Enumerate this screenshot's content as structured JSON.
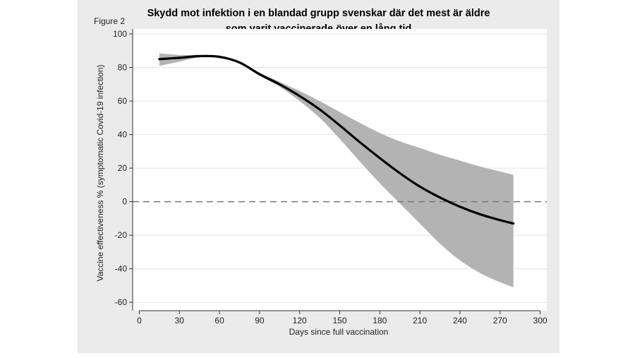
{
  "chart_data": {
    "type": "line",
    "title": "Skydd mot infektion i en blandad grupp svenskar där det mest är äldre som varit vaccinerade över en lång tid",
    "title_lines": [
      "Skydd mot infektion i en blandad grupp svenskar där det mest är äldre",
      "som varit vaccinerade över en lång tid"
    ],
    "figure_label": "Figure 2",
    "xlabel": "Days since full vaccination",
    "ylabel": "Vaccine effectiveness % (symptomatic Covid-19 infection)",
    "xlim": [
      -5,
      305
    ],
    "ylim": [
      -65,
      103
    ],
    "x_ticks": [
      0,
      30,
      60,
      90,
      120,
      150,
      180,
      210,
      240,
      270,
      300
    ],
    "y_ticks": [
      100,
      80,
      60,
      40,
      20,
      0,
      -20,
      -40,
      -60
    ],
    "reference_line": 0,
    "series": [
      {
        "name": "estimate",
        "x": [
          15,
          30,
          45,
          60,
          75,
          90,
          105,
          120,
          135,
          150,
          165,
          180,
          195,
          210,
          225,
          240,
          255,
          270,
          280
        ],
        "y": [
          85,
          85.8,
          86.8,
          86.4,
          83,
          76,
          70,
          63,
          55,
          45.5,
          35.5,
          26,
          17,
          9,
          2.5,
          -3,
          -7.5,
          -11,
          -13
        ]
      },
      {
        "name": "confidence_band",
        "x": [
          15,
          30,
          45,
          60,
          75,
          90,
          105,
          120,
          135,
          150,
          165,
          180,
          195,
          210,
          225,
          240,
          255,
          270,
          280
        ],
        "upper": [
          88.5,
          87.5,
          87.5,
          87,
          83.5,
          77,
          71.5,
          66,
          60,
          53.5,
          47,
          41,
          36,
          32,
          28,
          24.5,
          21,
          18,
          16
        ],
        "lower": [
          81,
          83.5,
          86,
          85.5,
          82.5,
          75,
          68.5,
          60,
          50,
          37.5,
          24,
          11,
          -1,
          -13,
          -25,
          -35,
          -42.5,
          -48,
          -51
        ]
      }
    ]
  }
}
